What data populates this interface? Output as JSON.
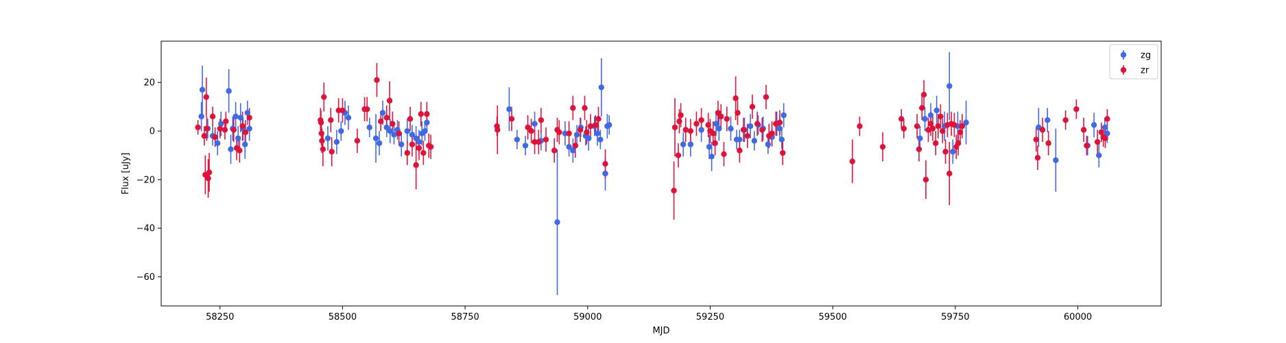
{
  "chart_data": {
    "type": "scatter",
    "title": "",
    "xlabel": "MJD",
    "ylabel": "Flux [uJy]",
    "xlim": [
      58130,
      60170
    ],
    "ylim": [
      -72,
      37
    ],
    "xticks": [
      58250,
      58500,
      58750,
      59000,
      59250,
      59500,
      59750,
      60000
    ],
    "yticks": [
      -60,
      -40,
      -20,
      0,
      20
    ],
    "legend_position": "top-right",
    "grid": false,
    "series": [
      {
        "name": "zg",
        "color": "#4169e1",
        "points": [
          [
            58212,
            6,
            6
          ],
          [
            58214,
            17,
            10
          ],
          [
            58225,
            1,
            4
          ],
          [
            58235,
            -2,
            4
          ],
          [
            58245,
            -5,
            5
          ],
          [
            58252,
            3,
            5
          ],
          [
            58268,
            16.5,
            9
          ],
          [
            58272,
            -7.5,
            6
          ],
          [
            58276,
            1,
            5
          ],
          [
            58282,
            6,
            6
          ],
          [
            58287,
            -3,
            5
          ],
          [
            58292,
            5.5,
            6
          ],
          [
            58297,
            1,
            5
          ],
          [
            58301,
            -5.5,
            6
          ],
          [
            58306,
            7.5,
            5
          ],
          [
            58310,
            1,
            5
          ],
          [
            58470,
            -3,
            5
          ],
          [
            58488,
            -4.5,
            5
          ],
          [
            58497,
            0,
            4
          ],
          [
            58505,
            7.5,
            5
          ],
          [
            58512,
            5.5,
            5
          ],
          [
            58555,
            1.5,
            4
          ],
          [
            58568,
            -3,
            10
          ],
          [
            58575,
            -5,
            5
          ],
          [
            58582,
            7.5,
            5
          ],
          [
            58590,
            1.5,
            4
          ],
          [
            58597,
            0,
            5
          ],
          [
            58605,
            -1.5,
            4
          ],
          [
            58612,
            0.5,
            4
          ],
          [
            58620,
            -5.5,
            5
          ],
          [
            58632,
            0,
            5
          ],
          [
            58642,
            -1.5,
            4
          ],
          [
            58650,
            -3,
            5
          ],
          [
            58656,
            -4.5,
            5
          ],
          [
            58662,
            -1,
            5
          ],
          [
            58668,
            0,
            4
          ],
          [
            58672,
            3.5,
            4
          ],
          [
            58840,
            9,
            9
          ],
          [
            58856,
            -3.5,
            4
          ],
          [
            58873,
            -6,
            4
          ],
          [
            58892,
            3,
            5
          ],
          [
            58905,
            -4,
            4
          ],
          [
            58938,
            -37.5,
            30
          ],
          [
            58954,
            -1,
            5
          ],
          [
            58962,
            -6.5,
            4
          ],
          [
            58970,
            -8,
            5
          ],
          [
            58978,
            -1.5,
            4
          ],
          [
            58986,
            1.5,
            4
          ],
          [
            58996,
            -2,
            4
          ],
          [
            59002,
            -3,
            5
          ],
          [
            59014,
            2,
            4
          ],
          [
            59020,
            -1,
            5
          ],
          [
            59026,
            -3.5,
            4
          ],
          [
            59028,
            18,
            12
          ],
          [
            59036,
            -17.5,
            7
          ],
          [
            59040,
            2,
            5
          ],
          [
            59044,
            2.5,
            4
          ],
          [
            59195,
            -5.5,
            5
          ],
          [
            59210,
            -5.5,
            5
          ],
          [
            59232,
            0.5,
            5
          ],
          [
            59248,
            -6.5,
            5
          ],
          [
            59253,
            -10.5,
            6
          ],
          [
            59262,
            3,
            5
          ],
          [
            59268,
            1,
            5
          ],
          [
            59292,
            1,
            5
          ],
          [
            59304,
            -3.5,
            4
          ],
          [
            59310,
            -3.5,
            4
          ],
          [
            59320,
            0.5,
            5
          ],
          [
            59332,
            2,
            5
          ],
          [
            59340,
            -4,
            4
          ],
          [
            59348,
            2.5,
            4
          ],
          [
            59358,
            1,
            5
          ],
          [
            59368,
            -5.5,
            4
          ],
          [
            59376,
            -2.5,
            4
          ],
          [
            59386,
            3,
            5
          ],
          [
            59392,
            1,
            5
          ],
          [
            59396,
            -3.5,
            4
          ],
          [
            59400,
            6.5,
            5
          ],
          [
            59678,
            -3,
            5
          ],
          [
            59688,
            5,
            5
          ],
          [
            59700,
            6.5,
            5
          ],
          [
            59712,
            8.5,
            6
          ],
          [
            59728,
            2,
            6
          ],
          [
            59738,
            18.5,
            14
          ],
          [
            59745,
            -8.5,
            5
          ],
          [
            59755,
            2,
            6
          ],
          [
            59772,
            3.5,
            9
          ],
          [
            59920,
            1.5,
            8
          ],
          [
            59938,
            4.5,
            5
          ],
          [
            59955,
            -12,
            13
          ],
          [
            60020,
            -6,
            4
          ],
          [
            60033,
            2.5,
            5
          ],
          [
            60043,
            -10,
            5
          ],
          [
            60055,
            1.5,
            4
          ],
          [
            60060,
            -1,
            4
          ]
        ]
      },
      {
        "name": "zr",
        "color": "#dc143c",
        "points": [
          [
            58205,
            1.5,
            3
          ],
          [
            58218,
            -2,
            4
          ],
          [
            58220,
            -18,
            8
          ],
          [
            58222,
            14,
            8
          ],
          [
            58223,
            1,
            5
          ],
          [
            58226,
            -19.5,
            8
          ],
          [
            58228,
            -17,
            8
          ],
          [
            58235,
            6,
            4
          ],
          [
            58240,
            -2.5,
            4
          ],
          [
            58250,
            1,
            4
          ],
          [
            58260,
            0.5,
            4
          ],
          [
            58262,
            4,
            4
          ],
          [
            58278,
            0.5,
            5
          ],
          [
            58284,
            -7,
            5
          ],
          [
            58290,
            -8,
            5
          ],
          [
            58296,
            2,
            6
          ],
          [
            58302,
            -0.5,
            5
          ],
          [
            58310,
            5.5,
            4
          ],
          [
            58455,
            4.5,
            5
          ],
          [
            58456,
            3.5,
            5
          ],
          [
            58457,
            -1,
            5
          ],
          [
            58458,
            -4,
            5
          ],
          [
            58460,
            -7.5,
            7
          ],
          [
            58462,
            14,
            6
          ],
          [
            58476,
            4.5,
            5
          ],
          [
            58478,
            -8.5,
            6
          ],
          [
            58492,
            8.5,
            5
          ],
          [
            58500,
            8.5,
            5
          ],
          [
            58530,
            -4,
            5
          ],
          [
            58545,
            9,
            5
          ],
          [
            58550,
            9,
            5
          ],
          [
            58570,
            21,
            7
          ],
          [
            58578,
            4,
            4
          ],
          [
            58590,
            5.5,
            5
          ],
          [
            58596,
            12.5,
            8
          ],
          [
            58602,
            3,
            5
          ],
          [
            58615,
            -1,
            5
          ],
          [
            58632,
            -9,
            5
          ],
          [
            58638,
            5,
            5
          ],
          [
            58642,
            -5.5,
            5
          ],
          [
            58650,
            -14,
            10
          ],
          [
            58656,
            -7,
            5
          ],
          [
            58660,
            7,
            5
          ],
          [
            58665,
            -9,
            5
          ],
          [
            58672,
            7,
            5
          ],
          [
            58676,
            -6,
            5
          ],
          [
            58680,
            -6.5,
            5
          ],
          [
            58815,
            2,
            4
          ],
          [
            58816,
            0.5,
            10
          ],
          [
            58845,
            5,
            5
          ],
          [
            58878,
            1.5,
            5
          ],
          [
            58885,
            0,
            5
          ],
          [
            58892,
            -4.5,
            5
          ],
          [
            58900,
            -4.5,
            5
          ],
          [
            58905,
            4.5,
            5
          ],
          [
            58915,
            -3.5,
            5
          ],
          [
            58932,
            -8,
            5
          ],
          [
            58938,
            0.5,
            5
          ],
          [
            58942,
            -0.5,
            5
          ],
          [
            58962,
            -1,
            5
          ],
          [
            58970,
            9.5,
            5
          ],
          [
            58975,
            -6,
            5
          ],
          [
            58985,
            0.5,
            5
          ],
          [
            58994,
            9.5,
            5
          ],
          [
            58998,
            -0.5,
            5
          ],
          [
            59006,
            2,
            5
          ],
          [
            59016,
            2.5,
            4
          ],
          [
            59022,
            5,
            5
          ],
          [
            59036,
            -13.5,
            6
          ],
          [
            59176,
            -24.5,
            12
          ],
          [
            59178,
            1.5,
            12
          ],
          [
            59185,
            -10,
            5
          ],
          [
            59187,
            4,
            5
          ],
          [
            59190,
            6.5,
            5
          ],
          [
            59200,
            0.5,
            5
          ],
          [
            59210,
            0,
            5
          ],
          [
            59222,
            3,
            5
          ],
          [
            59232,
            4.5,
            5
          ],
          [
            59246,
            2.5,
            5
          ],
          [
            59250,
            0,
            5
          ],
          [
            59256,
            -1,
            5
          ],
          [
            59260,
            -5,
            5
          ],
          [
            59266,
            7.5,
            5
          ],
          [
            59272,
            6,
            5
          ],
          [
            59278,
            -9.5,
            5
          ],
          [
            59284,
            5,
            5
          ],
          [
            59302,
            13.5,
            9
          ],
          [
            59306,
            7.5,
            5
          ],
          [
            59310,
            -8,
            5
          ],
          [
            59318,
            0.5,
            5
          ],
          [
            59326,
            -2,
            5
          ],
          [
            59336,
            10,
            5
          ],
          [
            59346,
            3,
            5
          ],
          [
            59356,
            0.5,
            5
          ],
          [
            59364,
            14,
            5
          ],
          [
            59370,
            -2,
            5
          ],
          [
            59376,
            -1,
            5
          ],
          [
            59384,
            3,
            5
          ],
          [
            59392,
            3.5,
            5
          ],
          [
            59398,
            -9,
            5
          ],
          [
            59540,
            -12.5,
            9
          ],
          [
            59555,
            2,
            4
          ],
          [
            59602,
            -6.5,
            6
          ],
          [
            59640,
            5,
            4
          ],
          [
            59645,
            1,
            4
          ],
          [
            59672,
            2,
            5
          ],
          [
            59676,
            -7.5,
            5
          ],
          [
            59682,
            9.5,
            5
          ],
          [
            59686,
            15,
            6
          ],
          [
            59690,
            -20,
            8
          ],
          [
            59695,
            0.5,
            5
          ],
          [
            59700,
            3,
            5
          ],
          [
            59704,
            1,
            5
          ],
          [
            59710,
            -5,
            5
          ],
          [
            59715,
            2,
            5
          ],
          [
            59720,
            6,
            5
          ],
          [
            59724,
            0,
            5
          ],
          [
            59730,
            -8.5,
            5
          ],
          [
            59734,
            2.5,
            5
          ],
          [
            59738,
            -17.5,
            13
          ],
          [
            59742,
            3,
            5
          ],
          [
            59748,
            2.5,
            5
          ],
          [
            59752,
            -6.5,
            5
          ],
          [
            59756,
            -5,
            5
          ],
          [
            59760,
            -0.5,
            5
          ],
          [
            59764,
            2,
            5
          ],
          [
            59915,
            -3.5,
            5
          ],
          [
            59918,
            -11,
            5
          ],
          [
            59928,
            0.5,
            5
          ],
          [
            59940,
            -5,
            5
          ],
          [
            59975,
            4.5,
            4
          ],
          [
            59997,
            9,
            4
          ],
          [
            60012,
            0.5,
            5
          ],
          [
            60018,
            -6,
            4
          ],
          [
            60040,
            -4.5,
            5
          ],
          [
            60048,
            -0.5,
            4
          ],
          [
            60052,
            -2.5,
            4
          ],
          [
            60056,
            -3,
            4
          ],
          [
            60060,
            5,
            4
          ]
        ]
      }
    ]
  }
}
